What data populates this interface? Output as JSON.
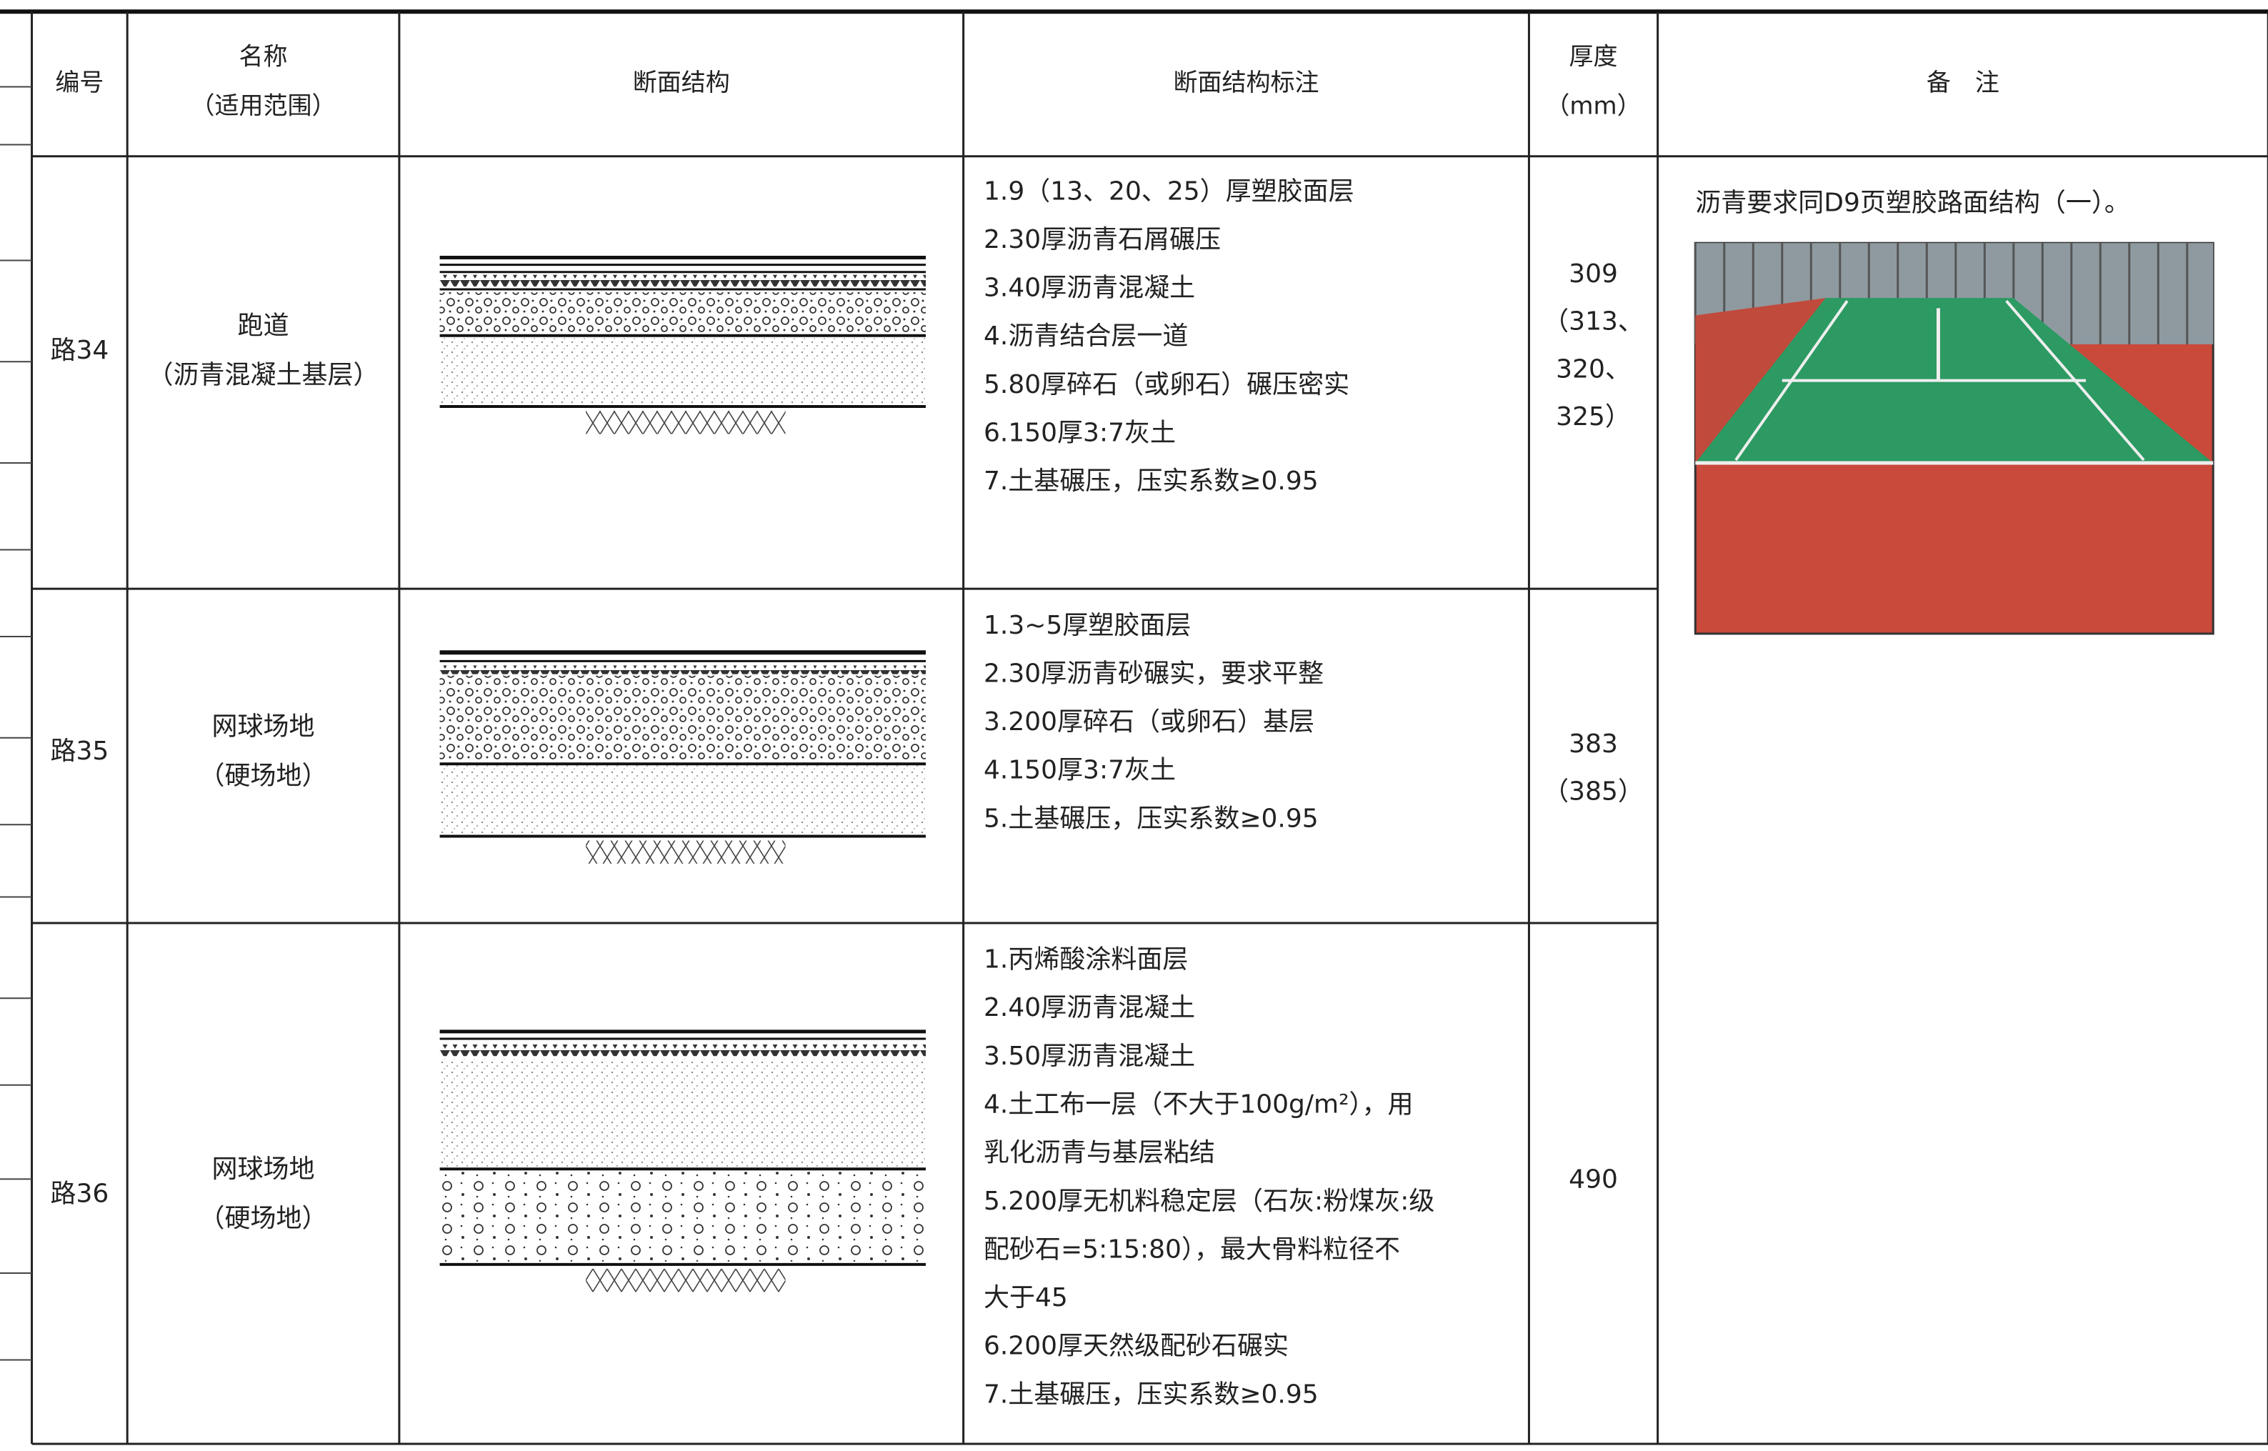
{
  "table": {
    "headers": [
      [
        "编号"
      ],
      [
        "名称",
        "（适用范围）"
      ],
      [
        "断面结构"
      ],
      [
        "断面结构标注"
      ],
      [
        "厚度",
        "（mm）"
      ],
      [
        "备　注"
      ]
    ],
    "rows": [
      {
        "id": "路34",
        "name": [
          "跑道",
          "（沥青混凝土基层）"
        ],
        "layers": [
          "1.9（13、20、25）厚塑胶面层",
          "2.30厚沥青石屑碾压",
          "3.40厚沥青混凝土",
          "4.沥青结合层一道",
          "5.80厚碎石（或卵石）碾压密实",
          "6.150厚3:7灰土",
          "7.土基碾压，压实系数≥0.95"
        ],
        "thickness": [
          "309",
          "（313、",
          "320、",
          "325）"
        ]
      },
      {
        "id": "路35",
        "name": [
          "网球场地",
          "（硬场地）"
        ],
        "layers": [
          "1.3~5厚塑胶面层",
          "2.30厚沥青砂碾实，要求平整",
          "3.200厚碎石（或卵石）基层",
          "4.150厚3:7灰土",
          "5.土基碾压，压实系数≥0.95"
        ],
        "thickness": [
          "383",
          "（385）"
        ]
      },
      {
        "id": "路36",
        "name": [
          "网球场地",
          "（硬场地）"
        ],
        "layers": [
          "1.丙烯酸涂料面层",
          "2.40厚沥青混凝土",
          "3.50厚沥青混凝土",
          "4.土工布一层（不大于100g/m²），用",
          "乳化沥青与基层粘结",
          "5.200厚无机料稳定层（石灰:粉煤灰:级",
          "配砂石=5:15:80），最大骨料粒径不",
          "大于45",
          "6.200厚天然级配砂石碾实",
          "7.土基碾压，压实系数≥0.95"
        ],
        "thickness": [
          "490"
        ]
      }
    ],
    "remark": "沥青要求同D9页塑胶路面结构（一）。"
  }
}
